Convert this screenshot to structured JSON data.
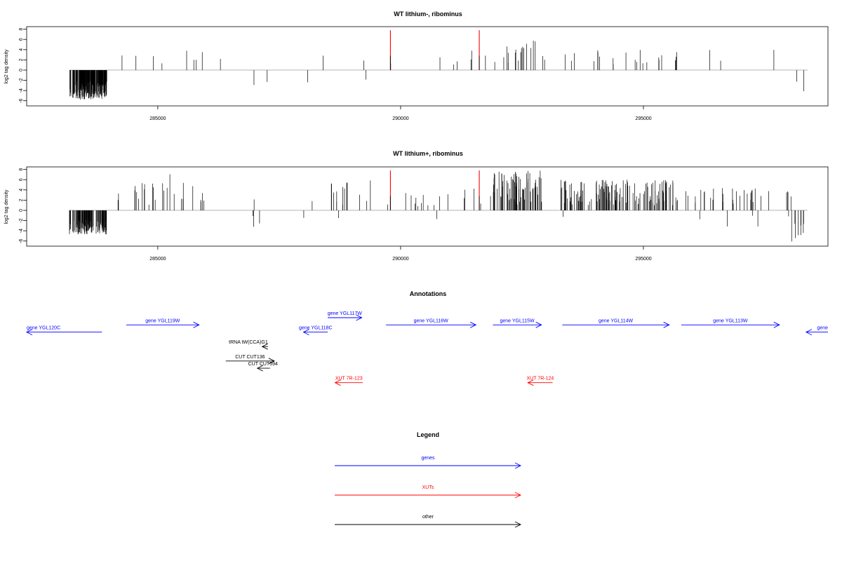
{
  "colors": {
    "axis": "#000000",
    "signal": "#000000",
    "highlight": "#ff0000",
    "genes": "#0000ff",
    "xuts": "#ff0000",
    "other": "#000000",
    "baseline": "#888888"
  },
  "chart_data": [
    {
      "type": "bar",
      "title": "WT lithium-, ribominus",
      "ylabel": "log2 tag density",
      "xlim": [
        282300,
        298800
      ],
      "ylim": [
        -7,
        8.5
      ],
      "xticks": [
        285000,
        290000,
        295000
      ],
      "yticks": [
        -6,
        -4,
        -2,
        0,
        2,
        4,
        6,
        8
      ],
      "highlights": [
        {
          "x": 289790,
          "value": 7.8
        },
        {
          "x": 291620,
          "value": 7.8
        }
      ],
      "segments": [
        {
          "from": 283180,
          "to": 283950,
          "min": 2.2,
          "max": 5.8,
          "sign": -1,
          "density": 2.5
        },
        {
          "from": 284250,
          "to": 284300,
          "min": 2.4,
          "max": 3.0,
          "sign": 1,
          "density": 0.04
        },
        {
          "from": 284550,
          "to": 285150,
          "min": 1.2,
          "max": 4.2,
          "sign": 1,
          "density": 0.045
        },
        {
          "from": 285300,
          "to": 286000,
          "min": 1.2,
          "max": 4.2,
          "sign": 1,
          "density": 0.055
        },
        {
          "from": 286280,
          "to": 286320,
          "min": 2.0,
          "max": 2.4,
          "sign": 1,
          "density": 0.03
        },
        {
          "from": 286960,
          "to": 287000,
          "min": 2.8,
          "max": 3.1,
          "sign": -1,
          "density": 0.03
        },
        {
          "from": 287200,
          "to": 287350,
          "min": 2.0,
          "max": 3.3,
          "sign": -1,
          "density": 0.04
        },
        {
          "from": 288060,
          "to": 288100,
          "min": 2.0,
          "max": 2.4,
          "sign": -1,
          "density": 0.03
        },
        {
          "from": 288380,
          "to": 288420,
          "min": 2.8,
          "max": 3.2,
          "sign": 1,
          "density": 0.03
        },
        {
          "from": 288600,
          "to": 289300,
          "min": 1.0,
          "max": 3.2,
          "sign": 1,
          "density": 0.012
        },
        {
          "from": 289020,
          "to": 289350,
          "min": 1.0,
          "max": 3.6,
          "sign": -1,
          "density": 0.008
        },
        {
          "from": 289700,
          "to": 289820,
          "min": 1.2,
          "max": 2.4,
          "sign": 1,
          "density": 0.03
        },
        {
          "from": 290600,
          "to": 291500,
          "min": 1.0,
          "max": 3.0,
          "sign": 1,
          "density": 0.04
        },
        {
          "from": 291100,
          "to": 291750,
          "min": 1.5,
          "max": 4.0,
          "sign": 1,
          "density": 0.03
        },
        {
          "from": 291900,
          "to": 293000,
          "min": 1.0,
          "max": 5.8,
          "sign": 1,
          "density": 0.16
        },
        {
          "from": 293300,
          "to": 295700,
          "min": 1.0,
          "max": 4.0,
          "sign": 1,
          "density": 0.09
        },
        {
          "from": 295950,
          "to": 297300,
          "min": 1.2,
          "max": 4.1,
          "sign": 1,
          "density": 0.012
        },
        {
          "from": 297650,
          "to": 298050,
          "min": 1.5,
          "max": 4.6,
          "sign": 1,
          "density": 0.02
        },
        {
          "from": 298150,
          "to": 298380,
          "min": 1.5,
          "max": 4.5,
          "sign": -1,
          "density": 0.1
        }
      ]
    },
    {
      "type": "bar",
      "title": "WT lithium+, ribominus",
      "ylabel": "log2 tag density",
      "xlim": [
        282300,
        298800
      ],
      "ylim": [
        -7,
        8.5
      ],
      "xticks": [
        285000,
        290000,
        295000
      ],
      "yticks": [
        -6,
        -4,
        -2,
        0,
        2,
        4,
        6,
        8
      ],
      "highlights": [
        {
          "x": 289790,
          "value": 7.8
        },
        {
          "x": 291620,
          "value": 7.8
        }
      ],
      "segments": [
        {
          "from": 283180,
          "to": 283950,
          "min": 1.8,
          "max": 4.7,
          "sign": -1,
          "density": 1.5
        },
        {
          "from": 284150,
          "to": 284350,
          "min": 1.0,
          "max": 3.8,
          "sign": 1,
          "density": 0.08
        },
        {
          "from": 284500,
          "to": 286000,
          "min": 1.0,
          "max": 5.5,
          "sign": 1,
          "density": 0.15
        },
        {
          "from": 285150,
          "to": 285250,
          "min": 5.0,
          "max": 7.4,
          "sign": 1,
          "density": 0.02
        },
        {
          "from": 286050,
          "to": 287400,
          "min": 0.8,
          "max": 3.3,
          "sign": -1,
          "density": 0.022
        },
        {
          "from": 286700,
          "to": 287000,
          "min": 1.0,
          "max": 3.5,
          "sign": 1,
          "density": 0.01
        },
        {
          "from": 287700,
          "to": 288100,
          "min": 0.8,
          "max": 2.4,
          "sign": -1,
          "density": 0.01
        },
        {
          "from": 288150,
          "to": 288200,
          "min": 1.5,
          "max": 2.5,
          "sign": 1,
          "density": 0.02
        },
        {
          "from": 288500,
          "to": 289500,
          "min": 1.0,
          "max": 6.3,
          "sign": 1,
          "density": 0.13
        },
        {
          "from": 288700,
          "to": 289500,
          "min": 1.0,
          "max": 3.5,
          "sign": -1,
          "density": 0.01
        },
        {
          "from": 289600,
          "to": 289800,
          "min": 0.8,
          "max": 3.0,
          "sign": 1,
          "density": 0.05
        },
        {
          "from": 290000,
          "to": 291900,
          "min": 0.8,
          "max": 4.5,
          "sign": 1,
          "density": 0.09
        },
        {
          "from": 290150,
          "to": 291800,
          "min": 0.8,
          "max": 2.0,
          "sign": -1,
          "density": 0.005
        },
        {
          "from": 291900,
          "to": 293000,
          "min": 1.0,
          "max": 7.8,
          "sign": 1,
          "density": 0.6
        },
        {
          "from": 292600,
          "to": 293400,
          "min": 0.6,
          "max": 1.5,
          "sign": -1,
          "density": 0.01
        },
        {
          "from": 293300,
          "to": 295700,
          "min": 1.0,
          "max": 6.0,
          "sign": 1,
          "density": 0.55
        },
        {
          "from": 295850,
          "to": 298100,
          "min": 0.8,
          "max": 4.4,
          "sign": 1,
          "density": 0.14
        },
        {
          "from": 296000,
          "to": 298000,
          "min": 0.6,
          "max": 3.2,
          "sign": -1,
          "density": 0.025
        },
        {
          "from": 298050,
          "to": 298380,
          "min": 2.5,
          "max": 6.1,
          "sign": -1,
          "density": 0.25
        }
      ]
    }
  ],
  "annotations": {
    "title": "Annotations",
    "xlim": [
      282300,
      298800
    ],
    "features": [
      {
        "label": "gene YGL120C",
        "kind": "genes",
        "from": 282300,
        "to": 283850,
        "strand": "-",
        "row": 2
      },
      {
        "label": "gene YGL119W",
        "kind": "genes",
        "from": 284350,
        "to": 285850,
        "strand": "+",
        "row": 1
      },
      {
        "label": "gene YGL118C",
        "kind": "genes",
        "from": 288000,
        "to": 288500,
        "strand": "-",
        "row": 2
      },
      {
        "label": "gene YGL117W",
        "kind": "genes",
        "from": 288500,
        "to": 289200,
        "strand": "+",
        "row": 0
      },
      {
        "label": "gene YGL116W",
        "kind": "genes",
        "from": 289700,
        "to": 291550,
        "strand": "+",
        "row": 1
      },
      {
        "label": "gene YGL115W",
        "kind": "genes",
        "from": 291900,
        "to": 292900,
        "strand": "+",
        "row": 1
      },
      {
        "label": "gene YGL114W",
        "kind": "genes",
        "from": 293330,
        "to": 295530,
        "strand": "+",
        "row": 1
      },
      {
        "label": "gene YGL113W",
        "kind": "genes",
        "from": 295780,
        "to": 297800,
        "strand": "+",
        "row": 1
      },
      {
        "label": "gene",
        "kind": "genes",
        "from": 298350,
        "to": 298800,
        "strand": "-",
        "row": 2
      },
      {
        "label": "tRNA tW(CCA)G1",
        "kind": "other",
        "from": 287150,
        "to": 287270,
        "strand": "-",
        "row": 4
      },
      {
        "label": "CUT CUT136",
        "kind": "other",
        "from": 286400,
        "to": 287400,
        "strand": "+",
        "row": 6
      },
      {
        "label": "CUT CUT594",
        "kind": "other",
        "from": 287050,
        "to": 287310,
        "strand": "-",
        "row": 7
      },
      {
        "label": "XUT 7R-123",
        "kind": "xuts",
        "from": 288650,
        "to": 289220,
        "strand": "-",
        "row": 9
      },
      {
        "label": "XUT 7R-124",
        "kind": "xuts",
        "from": 292620,
        "to": 293130,
        "strand": "-",
        "row": 9
      }
    ]
  },
  "legend": {
    "title": "Legend",
    "items": [
      {
        "label": "genes",
        "kind": "genes"
      },
      {
        "label": "XUTs",
        "kind": "xuts"
      },
      {
        "label": "other",
        "kind": "other"
      }
    ]
  }
}
